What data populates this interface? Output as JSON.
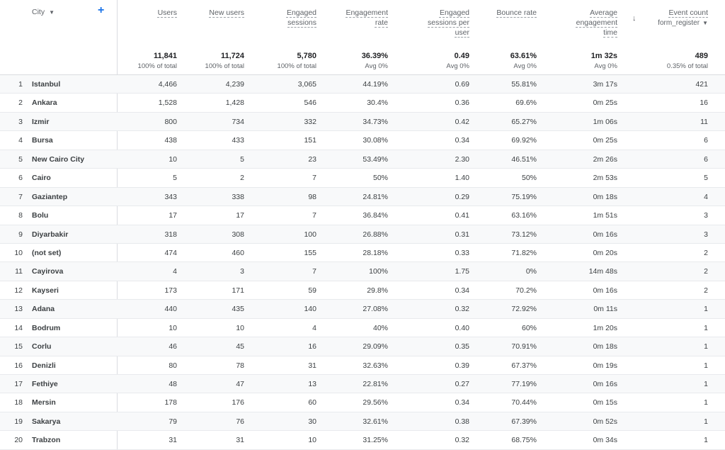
{
  "header": {
    "city_label": "City",
    "add_dimension": "+",
    "sort_indicator": "↓",
    "columns": [
      {
        "lines": [
          "Users"
        ],
        "total": "11,841",
        "sub": "100% of total"
      },
      {
        "lines": [
          "New users"
        ],
        "total": "11,724",
        "sub": "100% of total"
      },
      {
        "lines": [
          "Engaged",
          "sessions"
        ],
        "total": "5,780",
        "sub": "100% of total"
      },
      {
        "lines": [
          "Engagement",
          "rate"
        ],
        "total": "36.39%",
        "sub": "Avg 0%"
      },
      {
        "lines": [
          "Engaged",
          "sessions per",
          "user"
        ],
        "total": "0.49",
        "sub": "Avg 0%"
      },
      {
        "lines": [
          "Bounce rate"
        ],
        "total": "63.61%",
        "sub": "Avg 0%"
      },
      {
        "lines": [
          "Average",
          "engagement",
          "time"
        ],
        "total": "1m 32s",
        "sub": "Avg 0%"
      },
      {
        "lines": [
          "Event count"
        ],
        "event_name": "form_register",
        "total": "489",
        "sub": "0.35% of total"
      }
    ]
  },
  "rows": [
    {
      "i": "1",
      "city": "Istanbul",
      "v": [
        "4,466",
        "4,239",
        "3,065",
        "44.19%",
        "0.69",
        "55.81%",
        "3m 17s",
        "421"
      ]
    },
    {
      "i": "2",
      "city": "Ankara",
      "v": [
        "1,528",
        "1,428",
        "546",
        "30.4%",
        "0.36",
        "69.6%",
        "0m 25s",
        "16"
      ]
    },
    {
      "i": "3",
      "city": "Izmir",
      "v": [
        "800",
        "734",
        "332",
        "34.73%",
        "0.42",
        "65.27%",
        "1m 06s",
        "11"
      ]
    },
    {
      "i": "4",
      "city": "Bursa",
      "v": [
        "438",
        "433",
        "151",
        "30.08%",
        "0.34",
        "69.92%",
        "0m 25s",
        "6"
      ]
    },
    {
      "i": "5",
      "city": "New Cairo City",
      "v": [
        "10",
        "5",
        "23",
        "53.49%",
        "2.30",
        "46.51%",
        "2m 26s",
        "6"
      ]
    },
    {
      "i": "6",
      "city": "Cairo",
      "v": [
        "5",
        "2",
        "7",
        "50%",
        "1.40",
        "50%",
        "2m 53s",
        "5"
      ]
    },
    {
      "i": "7",
      "city": "Gaziantep",
      "v": [
        "343",
        "338",
        "98",
        "24.81%",
        "0.29",
        "75.19%",
        "0m 18s",
        "4"
      ]
    },
    {
      "i": "8",
      "city": "Bolu",
      "v": [
        "17",
        "17",
        "7",
        "36.84%",
        "0.41",
        "63.16%",
        "1m 51s",
        "3"
      ]
    },
    {
      "i": "9",
      "city": "Diyarbakir",
      "v": [
        "318",
        "308",
        "100",
        "26.88%",
        "0.31",
        "73.12%",
        "0m 16s",
        "3"
      ]
    },
    {
      "i": "10",
      "city": "(not set)",
      "v": [
        "474",
        "460",
        "155",
        "28.18%",
        "0.33",
        "71.82%",
        "0m 20s",
        "2"
      ]
    },
    {
      "i": "11",
      "city": "Cayirova",
      "v": [
        "4",
        "3",
        "7",
        "100%",
        "1.75",
        "0%",
        "14m 48s",
        "2"
      ]
    },
    {
      "i": "12",
      "city": "Kayseri",
      "v": [
        "173",
        "171",
        "59",
        "29.8%",
        "0.34",
        "70.2%",
        "0m 16s",
        "2"
      ]
    },
    {
      "i": "13",
      "city": "Adana",
      "v": [
        "440",
        "435",
        "140",
        "27.08%",
        "0.32",
        "72.92%",
        "0m 11s",
        "1"
      ]
    },
    {
      "i": "14",
      "city": "Bodrum",
      "v": [
        "10",
        "10",
        "4",
        "40%",
        "0.40",
        "60%",
        "1m 20s",
        "1"
      ]
    },
    {
      "i": "15",
      "city": "Corlu",
      "v": [
        "46",
        "45",
        "16",
        "29.09%",
        "0.35",
        "70.91%",
        "0m 18s",
        "1"
      ]
    },
    {
      "i": "16",
      "city": "Denizli",
      "v": [
        "80",
        "78",
        "31",
        "32.63%",
        "0.39",
        "67.37%",
        "0m 19s",
        "1"
      ]
    },
    {
      "i": "17",
      "city": "Fethiye",
      "v": [
        "48",
        "47",
        "13",
        "22.81%",
        "0.27",
        "77.19%",
        "0m 16s",
        "1"
      ]
    },
    {
      "i": "18",
      "city": "Mersin",
      "v": [
        "178",
        "176",
        "60",
        "29.56%",
        "0.34",
        "70.44%",
        "0m 15s",
        "1"
      ]
    },
    {
      "i": "19",
      "city": "Sakarya",
      "v": [
        "79",
        "76",
        "30",
        "32.61%",
        "0.38",
        "67.39%",
        "0m 52s",
        "1"
      ]
    },
    {
      "i": "20",
      "city": "Trabzon",
      "v": [
        "31",
        "31",
        "10",
        "31.25%",
        "0.32",
        "68.75%",
        "0m 34s",
        "1"
      ]
    }
  ]
}
